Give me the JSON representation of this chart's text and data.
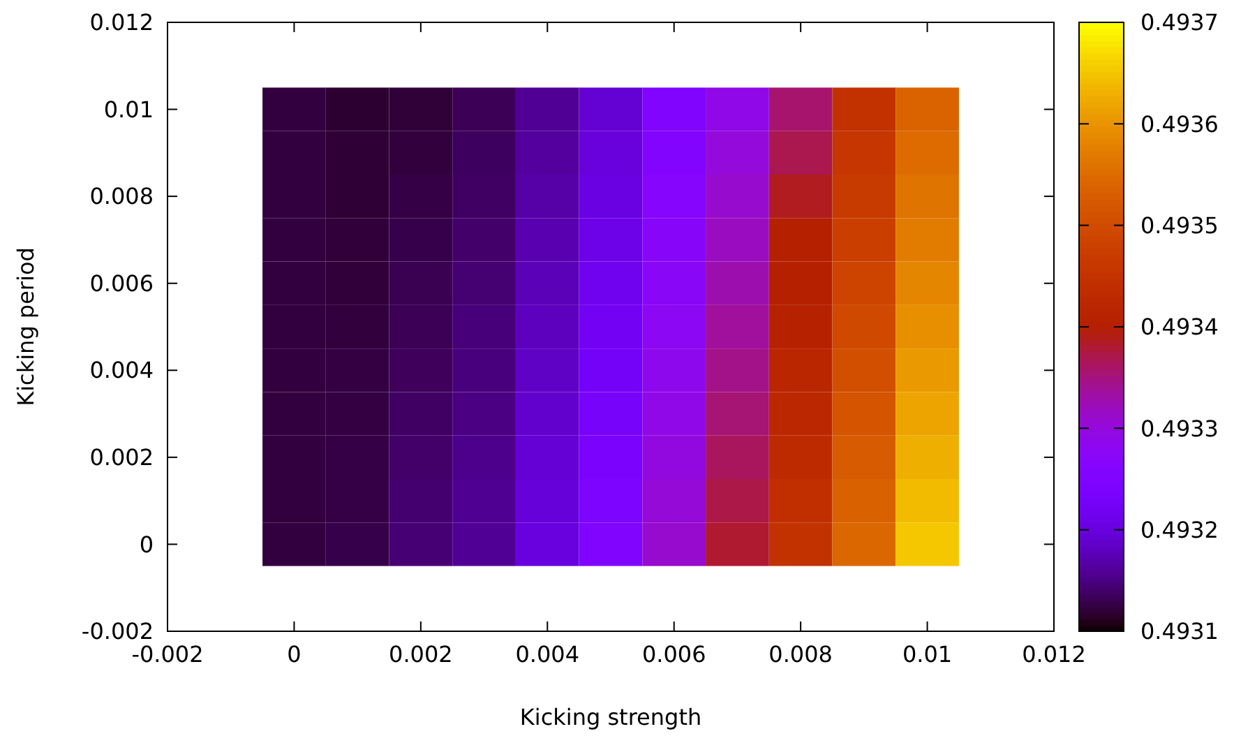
{
  "chart_data": {
    "type": "heatmap",
    "xlabel": "Kicking strength",
    "ylabel": "Kicking period",
    "x": [
      0,
      0.001,
      0.002,
      0.003,
      0.004,
      0.005,
      0.006,
      0.007,
      0.008,
      0.009,
      0.01
    ],
    "y": [
      0.01,
      0.009,
      0.008,
      0.007,
      0.006,
      0.005,
      0.004,
      0.003,
      0.002,
      0.001,
      0
    ],
    "cells": [
      [
        0.493124,
        0.493119,
        0.493121,
        0.493133,
        0.49316,
        0.493193,
        0.49325,
        0.493292,
        0.493358,
        0.493448,
        0.493538
      ],
      [
        0.493124,
        0.49312,
        0.493123,
        0.493136,
        0.493164,
        0.493199,
        0.493256,
        0.493301,
        0.49337,
        0.493458,
        0.493549
      ],
      [
        0.493124,
        0.49312,
        0.493126,
        0.493138,
        0.493168,
        0.493204,
        0.493262,
        0.49331,
        0.493388,
        0.493467,
        0.493561
      ],
      [
        0.493124,
        0.493122,
        0.493128,
        0.493141,
        0.493173,
        0.49321,
        0.493268,
        0.493319,
        0.4934,
        0.493477,
        0.493572
      ],
      [
        0.493124,
        0.493122,
        0.493131,
        0.493144,
        0.493177,
        0.493216,
        0.493274,
        0.493328,
        0.4934,
        0.493486,
        0.493584
      ],
      [
        0.493124,
        0.493123,
        0.493133,
        0.493147,
        0.493181,
        0.493222,
        0.49328,
        0.493337,
        0.493406,
        0.493496,
        0.493595
      ],
      [
        0.493124,
        0.493125,
        0.493135,
        0.493149,
        0.493185,
        0.493227,
        0.493286,
        0.493346,
        0.493418,
        0.493506,
        0.493606
      ],
      [
        0.493124,
        0.493125,
        0.493138,
        0.493152,
        0.493189,
        0.493233,
        0.493292,
        0.493355,
        0.493424,
        0.493515,
        0.493618
      ],
      [
        0.493124,
        0.493126,
        0.49314,
        0.493155,
        0.493194,
        0.493239,
        0.493298,
        0.493364,
        0.49343,
        0.493525,
        0.493629
      ],
      [
        0.493124,
        0.493127,
        0.493143,
        0.493158,
        0.493198,
        0.493245,
        0.493304,
        0.493373,
        0.493442,
        0.493534,
        0.493641
      ],
      [
        0.493124,
        0.493128,
        0.493145,
        0.49316,
        0.493202,
        0.49325,
        0.49331,
        0.493382,
        0.493448,
        0.493544,
        0.493652
      ]
    ],
    "xlim": [
      -0.002,
      0.012
    ],
    "xticks": [
      -0.002,
      0,
      0.002,
      0.004,
      0.006,
      0.008,
      0.01,
      0.012
    ],
    "ylim": [
      -0.002,
      0.012
    ],
    "yticks": [
      -0.002,
      0,
      0.002,
      0.004,
      0.006,
      0.008,
      0.01,
      0.012
    ],
    "clim": [
      0.4931,
      0.4937
    ],
    "cticks": [
      0.4931,
      0.4932,
      0.4933,
      0.4934,
      0.4935,
      0.4936,
      0.4937
    ]
  }
}
